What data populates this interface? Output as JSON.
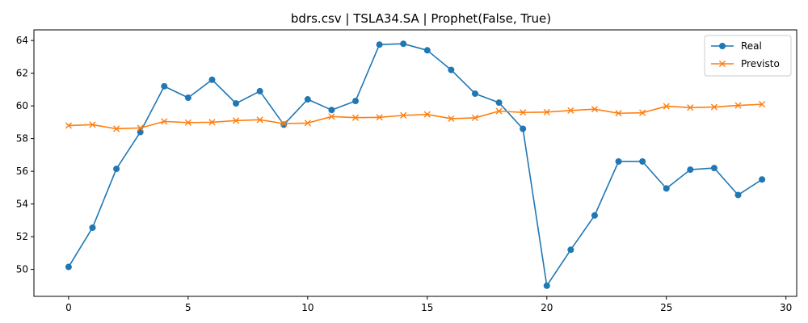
{
  "chart_data": {
    "type": "line",
    "title": "bdrs.csv | TSLA34.SA | Prophet(False, True)",
    "xlabel": "",
    "ylabel": "",
    "xlim": [
      -1.45,
      30.45
    ],
    "ylim": [
      48.35,
      64.65
    ],
    "xticks": [
      0,
      5,
      10,
      15,
      20,
      25,
      30
    ],
    "yticks": [
      50,
      52,
      54,
      56,
      58,
      60,
      62,
      64
    ],
    "grid": false,
    "legend_position": "top-right",
    "x": [
      0,
      1,
      2,
      3,
      4,
      5,
      6,
      7,
      8,
      9,
      10,
      11,
      12,
      13,
      14,
      15,
      16,
      17,
      18,
      19,
      20,
      21,
      22,
      23,
      24,
      25,
      26,
      27,
      28,
      29
    ],
    "series": [
      {
        "name": "Real",
        "color": "#1f77b4",
        "marker": "circle",
        "values": [
          50.15,
          52.55,
          56.15,
          58.4,
          61.2,
          60.5,
          61.6,
          60.15,
          60.9,
          58.85,
          60.4,
          59.75,
          60.3,
          63.75,
          63.8,
          63.4,
          62.2,
          60.75,
          60.2,
          58.6,
          49.0,
          51.2,
          53.3,
          56.6,
          56.6,
          54.95,
          56.1,
          56.2,
          54.55,
          55.5
        ]
      },
      {
        "name": "Previsto",
        "color": "#ff7f0e",
        "marker": "x",
        "values": [
          58.8,
          58.85,
          58.6,
          58.65,
          59.05,
          58.98,
          59.0,
          59.1,
          59.15,
          58.92,
          58.95,
          59.35,
          59.28,
          59.3,
          59.42,
          59.48,
          59.22,
          59.27,
          59.68,
          59.6,
          59.62,
          59.72,
          59.8,
          59.55,
          59.58,
          59.98,
          59.9,
          59.93,
          60.03,
          60.1
        ]
      }
    ]
  }
}
